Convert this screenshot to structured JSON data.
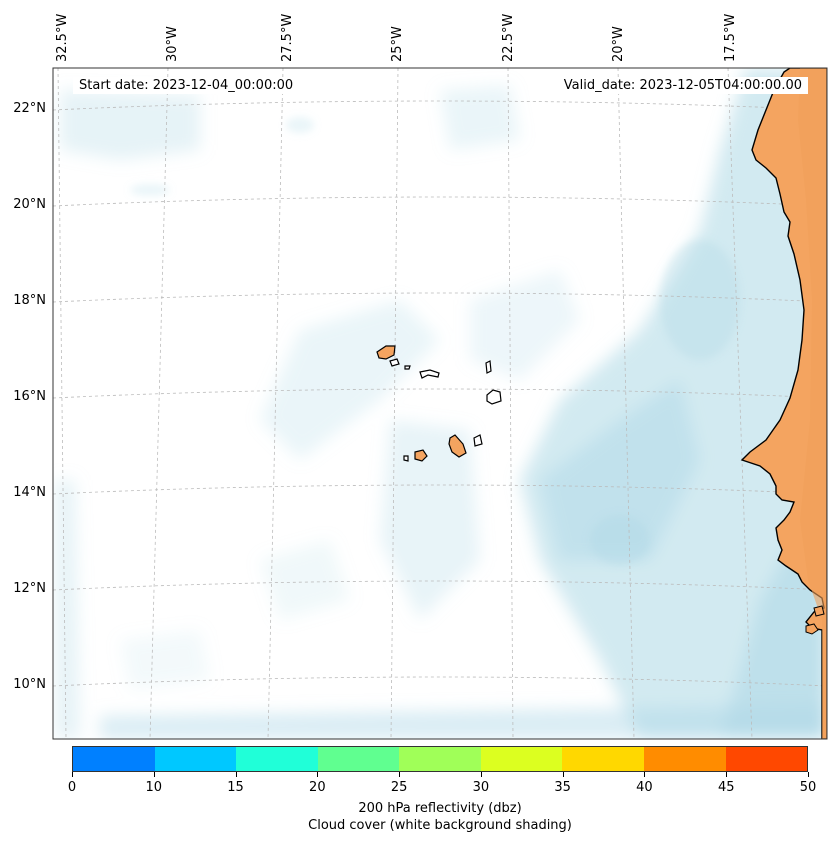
{
  "map": {
    "start_date": "Start date: 2023-12-04_00:00:00",
    "valid_date": "Valid_date: 2023-12-05T04:00:00.00",
    "lon_labels": [
      "32.5°W",
      "30°W",
      "27.5°W",
      "25°W",
      "22.5°W",
      "20°W",
      "17.5°W"
    ],
    "lat_labels": [
      "22°N",
      "20°N",
      "18°N",
      "16°N",
      "14°N",
      "12°N",
      "10°N"
    ],
    "land_color": "#f4a460",
    "cloud_color": "#add8e6"
  },
  "colorbar": {
    "ticks": [
      "0",
      "10",
      "15",
      "20",
      "25",
      "30",
      "35",
      "40",
      "45",
      "50"
    ],
    "colors": [
      "#0080ff",
      "#00c8ff",
      "#20ffd8",
      "#60ff90",
      "#a0ff58",
      "#dcff20",
      "#ffd800",
      "#ff8c00",
      "#ff4800"
    ],
    "title": "200 hPa reflectivity (dbz)",
    "subtitle": "Cloud cover (white background shading)"
  }
}
